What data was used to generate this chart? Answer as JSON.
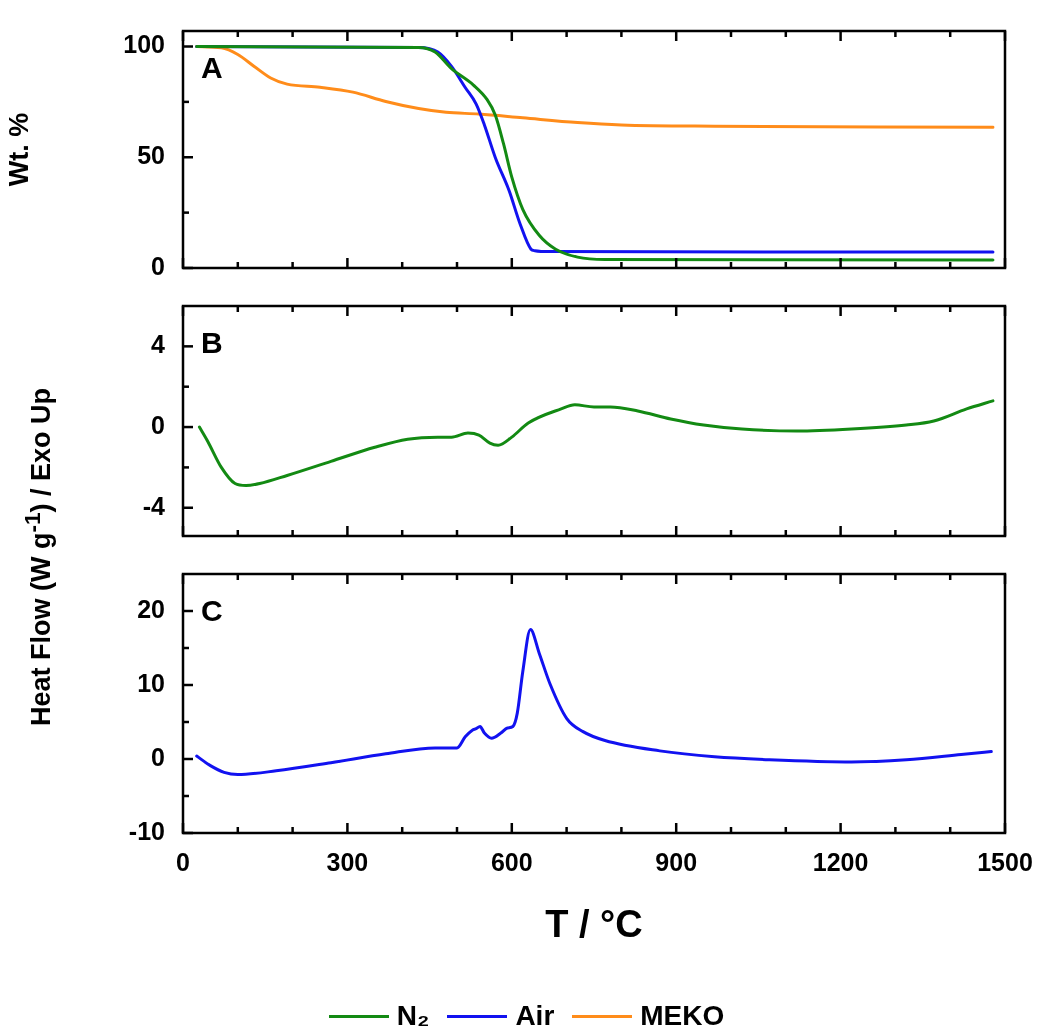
{
  "chart_data": [
    {
      "type": "line",
      "ylabel": "Wt. %",
      "annotations": [
        "A"
      ],
      "legend": "bottom",
      "tick_labels": "y",
      "xlim": [
        0,
        1500
      ],
      "xticks": [
        0,
        {
          "value": 100,
          "label": null
        },
        {
          "value": 200,
          "label": null
        },
        300,
        {
          "value": 400,
          "label": null
        },
        {
          "value": 500,
          "label": null
        },
        600,
        {
          "value": 700,
          "label": null
        },
        {
          "value": 800,
          "label": null
        },
        900,
        {
          "value": 1000,
          "label": null
        },
        {
          "value": 1100,
          "label": null
        },
        1200,
        {
          "value": 1300,
          "label": null
        },
        {
          "value": 1400,
          "label": null
        },
        1500
      ],
      "ylim": [
        0,
        107
      ],
      "yticks": [
        0,
        {
          "value": 25,
          "label": null
        },
        50,
        {
          "value": 75,
          "label": null
        },
        100
      ],
      "series": [
        {
          "name": "N₂",
          "color": "#138a13",
          "x": [
            25,
            430,
            460,
            490,
            530,
            555,
            570,
            585,
            600,
            620,
            650,
            680,
            720,
            770,
            1478
          ],
          "values": [
            100,
            99.6,
            97.5,
            90,
            82.6,
            76,
            69,
            56,
            41,
            26.5,
            14.8,
            8.5,
            4.9,
            3.8,
            3.6
          ]
        },
        {
          "name": "Air",
          "color": "#1212f0",
          "x": [
            25,
            430,
            465,
            490,
            515,
            535,
            550,
            570,
            595,
            615,
            635,
            642,
            670,
            1478
          ],
          "values": [
            100,
            99.6,
            97.5,
            91,
            81.5,
            74,
            64.6,
            49.8,
            35,
            20,
            8.5,
            7.8,
            7.4,
            7.2
          ]
        },
        {
          "name": "MEKO",
          "color": "#ff8c1a",
          "x": [
            25,
            70,
            100,
            130,
            160,
            190,
            250,
            310,
            370,
            430,
            480,
            540,
            620,
            720,
            800,
            970,
            1478
          ],
          "values": [
            100,
            99.4,
            96.4,
            91,
            85.8,
            83,
            81.6,
            79.4,
            75.2,
            72,
            70.3,
            69.5,
            67.8,
            65.7,
            64.6,
            64,
            63.6
          ]
        }
      ]
    },
    {
      "type": "line",
      "ylabel": "Heat Flow (W g$^{-1}$) / Exo Up",
      "annotations": [
        "B"
      ],
      "tick_labels": "y",
      "xlim": [
        0,
        1500
      ],
      "xticks": [
        0,
        {
          "value": 100,
          "label": null
        },
        {
          "value": 200,
          "label": null
        },
        300,
        {
          "value": 400,
          "label": null
        },
        {
          "value": 500,
          "label": null
        },
        600,
        {
          "value": 700,
          "label": null
        },
        {
          "value": 800,
          "label": null
        },
        900,
        {
          "value": 1000,
          "label": null
        },
        {
          "value": 1100,
          "label": null
        },
        1200,
        {
          "value": 1300,
          "label": null
        },
        {
          "value": 1400,
          "label": null
        },
        1500
      ],
      "ylim": [
        -5.4,
        6
      ],
      "yticks": [
        -4,
        {
          "value": -2,
          "label": null
        },
        0,
        {
          "value": 2,
          "label": null
        },
        4
      ],
      "series": [
        {
          "color": "#138a13",
          "x": [
            30,
            45,
            70,
            95,
            115,
            140,
            190,
            270,
            350,
            410,
            465,
            490,
            520,
            540,
            560,
            575,
            600,
            630,
            690,
            715,
            750,
            780,
            830,
            890,
            950,
            1020,
            1120,
            1220,
            1320,
            1370,
            1430,
            1478
          ],
          "values": [
            0,
            -0.7,
            -2.0,
            -2.8,
            -2.9,
            -2.8,
            -2.4,
            -1.7,
            -1.0,
            -0.6,
            -0.5,
            -0.5,
            -0.3,
            -0.4,
            -0.8,
            -0.9,
            -0.5,
            0.2,
            0.9,
            1.1,
            1.0,
            1.0,
            0.8,
            0.4,
            0.1,
            -0.1,
            -0.2,
            -0.1,
            0.1,
            0.3,
            0.9,
            1.3
          ]
        }
      ]
    },
    {
      "type": "line",
      "xlabel": "T / °C",
      "annotations": [
        "C"
      ],
      "xlim": [
        0,
        1500
      ],
      "xticks": [
        0,
        {
          "value": 100,
          "label": null
        },
        {
          "value": 200,
          "label": null
        },
        300,
        {
          "value": 400,
          "label": null
        },
        {
          "value": 500,
          "label": null
        },
        600,
        {
          "value": 700,
          "label": null
        },
        {
          "value": 800,
          "label": null
        },
        900,
        {
          "value": 1000,
          "label": null
        },
        {
          "value": 1100,
          "label": null
        },
        1200,
        {
          "value": 1300,
          "label": null
        },
        {
          "value": 1400,
          "label": null
        },
        1500
      ],
      "ylim": [
        -10,
        25
      ],
      "yticks": [
        -10,
        {
          "value": -5,
          "label": null
        },
        0,
        {
          "value": 5,
          "label": null
        },
        10,
        {
          "value": 15,
          "label": null
        },
        20
      ],
      "series": [
        {
          "color": "#1212f0",
          "x": [
            25,
            50,
            75,
            100,
            170,
            270,
            370,
            460,
            500,
            515,
            528,
            535,
            542,
            550,
            563,
            580,
            592,
            602,
            610,
            620,
            634,
            650,
            670,
            700,
            730,
            770,
            870,
            970,
            1070,
            1220,
            1320,
            1420,
            1475
          ],
          "values": [
            0.4,
            -0.9,
            -1.8,
            -2.1,
            -1.6,
            -0.5,
            0.7,
            1.5,
            1.5,
            3.0,
            3.9,
            4.1,
            4.4,
            3.5,
            2.8,
            3.5,
            4.2,
            4.4,
            6.2,
            11.8,
            17.5,
            14.3,
            10.1,
            5.5,
            3.7,
            2.5,
            1.1,
            0.3,
            -0.1,
            -0.4,
            -0.1,
            0.6,
            1.0
          ]
        }
      ]
    }
  ]
}
